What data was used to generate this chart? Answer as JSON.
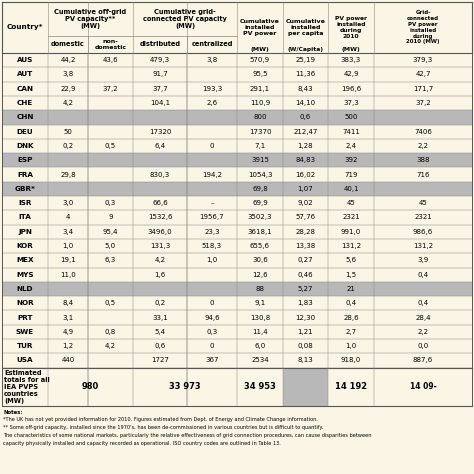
{
  "rows": [
    [
      "AUS",
      "44,2",
      "43,6",
      "479,3",
      "3,8",
      "570,9",
      "25,19",
      "383,3",
      "379,3"
    ],
    [
      "AUT",
      "3,8",
      "",
      "91,7",
      "",
      "95,5",
      "11,36",
      "42,9",
      "42,7"
    ],
    [
      "CAN",
      "22,9",
      "37,2",
      "37,7",
      "193,3",
      "291,1",
      "8,43",
      "196,6",
      "171,7"
    ],
    [
      "CHE",
      "4,2",
      "",
      "104,1",
      "2,6",
      "110,9",
      "14,10",
      "37,3",
      "37,2"
    ],
    [
      "CHN",
      "",
      "",
      "",
      "",
      "800",
      "0,6",
      "500",
      ""
    ],
    [
      "DEU",
      "50",
      "",
      "17320",
      "",
      "17370",
      "212,47",
      "7411",
      "7406"
    ],
    [
      "DNK",
      "0,2",
      "0,5",
      "6,4",
      "0",
      "7,1",
      "1,28",
      "2,4",
      "2,2"
    ],
    [
      "ESP",
      "",
      "",
      "",
      "",
      "3915",
      "84,83",
      "392",
      "388"
    ],
    [
      "FRA",
      "29,8",
      "",
      "830,3",
      "194,2",
      "1054,3",
      "16,02",
      "719",
      "716"
    ],
    [
      "GBR*",
      "",
      "",
      "",
      "",
      "69,8",
      "1,07",
      "40,1",
      ""
    ],
    [
      "ISR",
      "3,0",
      "0,3",
      "66,6",
      "–",
      "69,9",
      "9,02",
      "45",
      "45"
    ],
    [
      "ITA",
      "4",
      "9",
      "1532,6",
      "1956,7",
      "3502,3",
      "57,76",
      "2321",
      "2321"
    ],
    [
      "JPN",
      "3,4",
      "95,4",
      "3496,0",
      "23,3",
      "3618,1",
      "28,28",
      "991,0",
      "986,6"
    ],
    [
      "KOR",
      "1,0",
      "5,0",
      "131,3",
      "518,3",
      "655,6",
      "13,38",
      "131,2",
      "131,2"
    ],
    [
      "MEX",
      "19,1",
      "6,3",
      "4,2",
      "1,0",
      "30,6",
      "0,27",
      "5,6",
      "3,9"
    ],
    [
      "MYS",
      "11,0",
      "",
      "1,6",
      "",
      "12,6",
      "0,46",
      "1,5",
      "0,4"
    ],
    [
      "NLD",
      "",
      "",
      "",
      "",
      "88",
      "5,27",
      "21",
      ""
    ],
    [
      "NOR",
      "8,4",
      "0,5",
      "0,2",
      "0",
      "9,1",
      "1,83",
      "0,4",
      "0,4"
    ],
    [
      "PRT",
      "3,1",
      "",
      "33,1",
      "94,6",
      "130,8",
      "12,30",
      "28,6",
      "28,4"
    ],
    [
      "SWE",
      "4,9",
      "0,8",
      "5,4",
      "0,3",
      "11,4",
      "1,21",
      "2,7",
      "2,2"
    ],
    [
      "TUR",
      "1,2",
      "4,2",
      "0,6",
      "0",
      "6,0",
      "0,08",
      "1,0",
      "0,0"
    ],
    [
      "USA",
      "440",
      "",
      "1727",
      "367",
      "2534",
      "8,13",
      "918,0",
      "887,6"
    ]
  ],
  "grey_rows": [
    "CHN",
    "ESP",
    "GBR*",
    "NLD"
  ],
  "grey_last_col_rows": [
    "GBR*",
    "NLD"
  ],
  "notes": [
    "Notes:",
    "*The UK has not yet provided information for 2010. Figures estimated from Dept. of Energy and Climate Change information.",
    "** Some off-grid capacity, installed since the 1970's, has been de-commissioned in various countries but is difficult to quantify.",
    "The characteristics of some national markets, particularly the relative effectiveness of grid connection procedures, can cause disparities between",
    "capacity physically installed and capacity recorded as operational. ISO country codes are outlined in Table 13."
  ],
  "bg_color": "#faf5e4",
  "row_grey_color": "#b8b8b8",
  "line_color": "#888888",
  "outer_line_color": "#555555",
  "total_grey_col": "#b8b8b8"
}
